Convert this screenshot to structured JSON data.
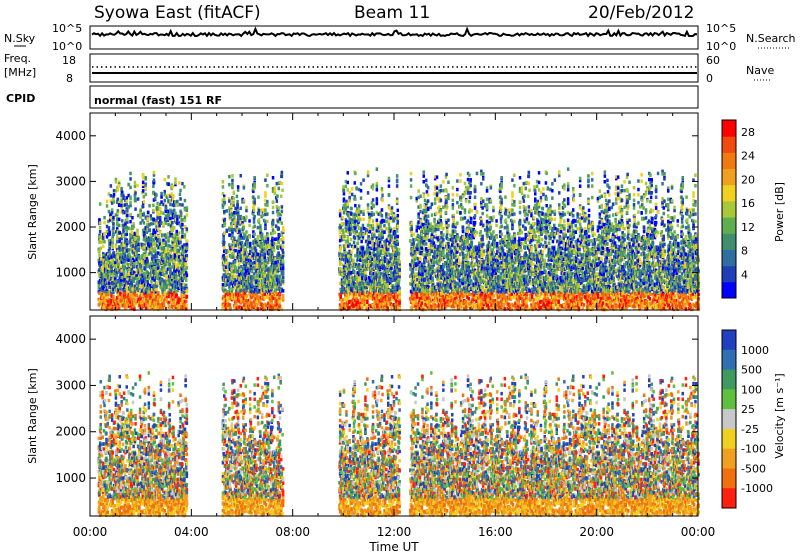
{
  "header": {
    "station": "Syowa East (fitACF)",
    "beam": "Beam 11",
    "date": "20/Feb/2012"
  },
  "panels": {
    "nsky": {
      "label": "N.Sky",
      "ticks": [
        "10^5",
        "10^0"
      ]
    },
    "nsearch": {
      "label": "N.Search",
      "ticks": [
        "10^5",
        "10^0"
      ]
    },
    "freq": {
      "label_1": "Freq.",
      "label_2": "[MHz]",
      "ticks": [
        "18",
        "8"
      ]
    },
    "nave": {
      "label": "Nave",
      "ticks": [
        "60",
        "0"
      ]
    },
    "cpid": {
      "label": "CPID",
      "text": "normal (fast) 151 RF"
    }
  },
  "x_axis": {
    "label": "Time UT",
    "ticks": [
      "00:00",
      "04:00",
      "08:00",
      "12:00",
      "16:00",
      "20:00",
      "00:00"
    ]
  },
  "colors": {
    "power_scale": [
      "#0000ff",
      "#1f3fb8",
      "#2e6fa0",
      "#3f8f6f",
      "#5fae4f",
      "#a8c83a",
      "#f0d020",
      "#f0a020",
      "#f07a10",
      "#f04a10",
      "#ff0000"
    ],
    "velocity_scale": [
      "#2040c0",
      "#2f70b0",
      "#3f9a60",
      "#5fc040",
      "#c8c8c8",
      "#f0d020",
      "#f0a020",
      "#f07010",
      "#ff2010"
    ]
  },
  "chart_data": [
    {
      "type": "heatmap",
      "name": "power",
      "ylabel": "Slant Range [km]",
      "yticks": [
        1000,
        2000,
        3000,
        4000
      ],
      "ylim": [
        180,
        4500
      ],
      "xlim": [
        0,
        24
      ],
      "colorbar": {
        "label": "Power [dB]",
        "ticks": [
          "4",
          "8",
          "12",
          "16",
          "20",
          "24",
          "28"
        ],
        "range": [
          0,
          30
        ]
      },
      "echo_bands_hours": [
        [
          0.3,
          2.2
        ],
        [
          2.2,
          3.8
        ],
        [
          5.2,
          7.6
        ],
        [
          9.8,
          12.2
        ],
        [
          12.6,
          24.0
        ]
      ]
    },
    {
      "type": "heatmap",
      "name": "velocity",
      "ylabel": "Slant Range [km]",
      "yticks": [
        1000,
        2000,
        3000,
        4000
      ],
      "ylim": [
        180,
        4500
      ],
      "xlim": [
        0,
        24
      ],
      "colorbar": {
        "label": "Velocity [m s⁻¹]",
        "ticks": [
          "1000",
          "500",
          "100",
          "25",
          "-25",
          "-100",
          "-500",
          "-1000"
        ],
        "range": [
          -1000,
          1000
        ]
      },
      "echo_bands_hours": [
        [
          0.3,
          2.2
        ],
        [
          2.2,
          3.8
        ],
        [
          5.2,
          7.6
        ],
        [
          9.8,
          12.2
        ],
        [
          12.6,
          24.0
        ]
      ]
    }
  ]
}
